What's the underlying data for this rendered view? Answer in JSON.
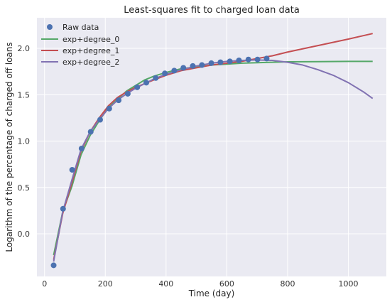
{
  "chart_data": {
    "type": "line",
    "title": "Least-squares fit to charged loan data",
    "xlabel": "Time (day)",
    "ylabel": "Logarithm of the percentage of charged off loans",
    "xlim": [
      -25,
      1125
    ],
    "ylim": [
      -0.46,
      2.33
    ],
    "x_ticks": [
      0,
      200,
      400,
      600,
      800,
      1000
    ],
    "x_tick_labels": [
      "0",
      "200",
      "400",
      "600",
      "800",
      "1000"
    ],
    "y_ticks": [
      0.0,
      0.5,
      1.0,
      1.5,
      2.0
    ],
    "y_tick_labels": [
      "0.0",
      "0.5",
      "1.0",
      "1.5",
      "2.0"
    ],
    "grid": true,
    "legend_position": "top-left",
    "colors": {
      "background": "#eaeaf2",
      "grid": "#ffffff",
      "raw": "#4c72b0",
      "exp_degree_0": "#55a868",
      "exp_degree_1": "#c44e52",
      "exp_degree_2": "#8172b2"
    },
    "raw_data": {
      "name": "Raw data",
      "x": [
        30,
        61,
        91,
        122,
        152,
        183,
        213,
        244,
        274,
        305,
        335,
        366,
        396,
        427,
        457,
        488,
        518,
        549,
        579,
        610,
        640,
        671,
        701,
        731
      ],
      "y": [
        -0.34,
        0.27,
        0.69,
        0.92,
        1.1,
        1.23,
        1.35,
        1.44,
        1.51,
        1.58,
        1.63,
        1.68,
        1.73,
        1.76,
        1.79,
        1.81,
        1.82,
        1.84,
        1.85,
        1.86,
        1.87,
        1.88,
        1.88,
        1.89
      ]
    },
    "series": [
      {
        "name": "exp+degree_0",
        "x": [
          30,
          60,
          90,
          120,
          150,
          180,
          210,
          240,
          270,
          300,
          330,
          360,
          400,
          450,
          500,
          550,
          600,
          650,
          700,
          750,
          800,
          900,
          1000,
          1080
        ],
        "y": [
          -0.23,
          0.24,
          0.51,
          0.85,
          1.06,
          1.22,
          1.36,
          1.45,
          1.54,
          1.6,
          1.66,
          1.7,
          1.74,
          1.78,
          1.8,
          1.82,
          1.83,
          1.84,
          1.845,
          1.85,
          1.855,
          1.857,
          1.86,
          1.86
        ]
      },
      {
        "name": "exp+degree_1",
        "x": [
          30,
          60,
          90,
          120,
          150,
          180,
          210,
          240,
          270,
          300,
          330,
          360,
          400,
          450,
          500,
          550,
          600,
          650,
          700,
          750,
          800,
          900,
          1000,
          1080
        ],
        "y": [
          -0.28,
          0.22,
          0.55,
          0.89,
          1.1,
          1.25,
          1.38,
          1.47,
          1.53,
          1.58,
          1.62,
          1.66,
          1.71,
          1.76,
          1.79,
          1.82,
          1.84,
          1.86,
          1.89,
          1.92,
          1.96,
          2.03,
          2.1,
          2.16
        ]
      },
      {
        "name": "exp+degree_2",
        "x": [
          30,
          60,
          90,
          120,
          150,
          180,
          210,
          240,
          270,
          300,
          330,
          360,
          400,
          450,
          500,
          550,
          600,
          650,
          700,
          750,
          800,
          850,
          900,
          950,
          1000,
          1050,
          1080
        ],
        "y": [
          -0.3,
          0.24,
          0.58,
          0.91,
          1.1,
          1.23,
          1.35,
          1.44,
          1.51,
          1.57,
          1.62,
          1.67,
          1.72,
          1.77,
          1.81,
          1.84,
          1.86,
          1.87,
          1.875,
          1.87,
          1.85,
          1.82,
          1.77,
          1.71,
          1.63,
          1.53,
          1.46
        ]
      }
    ]
  }
}
